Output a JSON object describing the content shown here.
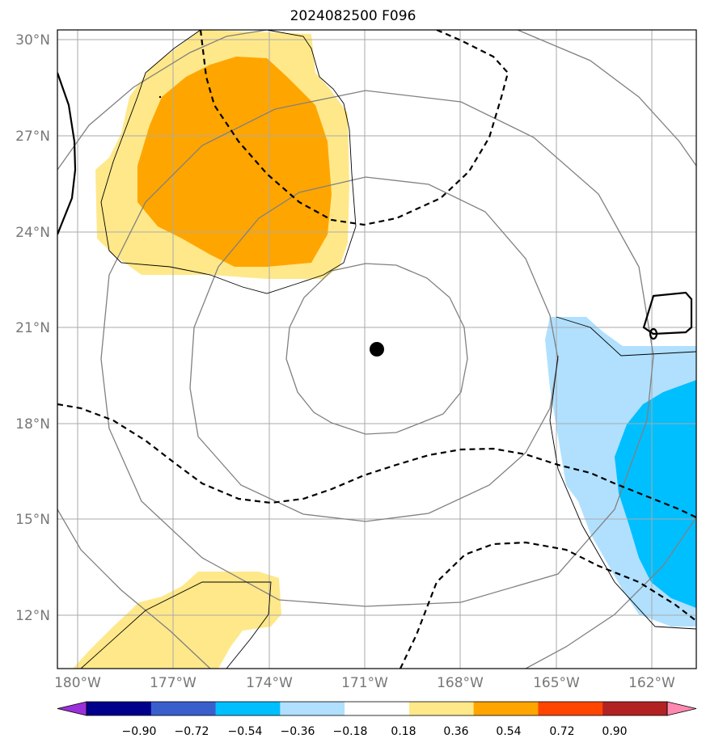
{
  "title": "2024082500 F096",
  "map": {
    "lat_labels": [
      "30°N",
      "27°N",
      "24°N",
      "21°N",
      "18°N",
      "15°N",
      "12°N"
    ],
    "lon_labels": [
      "180°W",
      "177°W",
      "174°W",
      "171°W",
      "168°W",
      "165°W",
      "162°W"
    ],
    "center_marker": "storm-center"
  },
  "colorbar": {
    "labels": [
      "−0.90",
      "−0.72",
      "−0.54",
      "−0.36",
      "−0.18",
      "0.18",
      "0.36",
      "0.54",
      "0.72",
      "0.90"
    ],
    "colors": [
      "#9b30d9",
      "#00008b",
      "#3a5fcd",
      "#00bfff",
      "#b0e0fe",
      "#ffffff",
      "#ffe88a",
      "#ffa500",
      "#ff4500",
      "#b22222",
      "#ff88b0"
    ]
  }
}
